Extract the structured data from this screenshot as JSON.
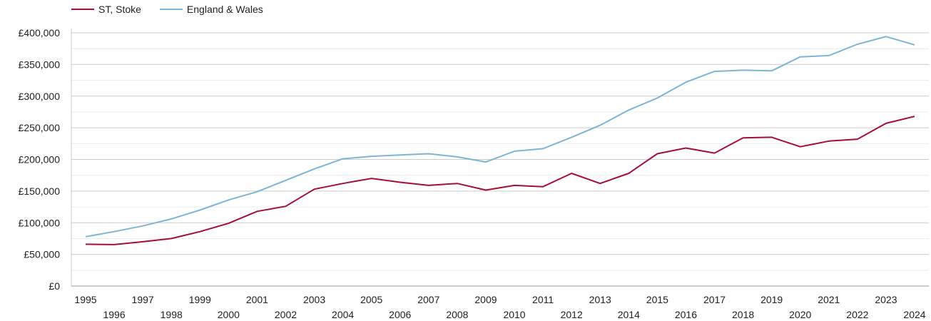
{
  "chart_data": {
    "type": "line",
    "title": "",
    "xlabel": "",
    "ylabel": "",
    "ylim": [
      0,
      400000
    ],
    "grid": true,
    "legend_position": "top-left",
    "y_ticks": [
      {
        "value": 0,
        "label": "£0"
      },
      {
        "value": 50000,
        "label": "£50,000"
      },
      {
        "value": 100000,
        "label": "£100,000"
      },
      {
        "value": 150000,
        "label": "£150,000"
      },
      {
        "value": 200000,
        "label": "£200,000"
      },
      {
        "value": 250000,
        "label": "£250,000"
      },
      {
        "value": 300000,
        "label": "£300,000"
      },
      {
        "value": 350000,
        "label": "£350,000"
      },
      {
        "value": 400000,
        "label": "£400,000"
      }
    ],
    "x": [
      "1995",
      "1996",
      "1997",
      "1998",
      "1999",
      "2000",
      "2001",
      "2002",
      "2003",
      "2004",
      "2005",
      "2006",
      "2007",
      "2008",
      "2009",
      "2010",
      "2011",
      "2012",
      "2013",
      "2014",
      "2015",
      "2016",
      "2017",
      "2018",
      "2019",
      "2020",
      "2021",
      "2022",
      "2023",
      "2024"
    ],
    "series": [
      {
        "name": "ST, Stoke",
        "color": "#a50f35",
        "values": [
          66000,
          65500,
          70000,
          75000,
          86000,
          99000,
          118000,
          126000,
          153000,
          162000,
          170000,
          164000,
          159000,
          162000,
          151500,
          159000,
          157000,
          178000,
          162000,
          178000,
          209000,
          218000,
          210000,
          234000,
          235000,
          220000,
          229000,
          232000,
          257000,
          268000
        ]
      },
      {
        "name": "England & Wales",
        "color": "#7eb4d7",
        "values": [
          78000,
          86000,
          95000,
          106000,
          120000,
          136000,
          149000,
          167000,
          185000,
          201000,
          205000,
          207000,
          209000,
          204000,
          196000,
          213000,
          217000,
          235000,
          254000,
          278000,
          297000,
          322000,
          339000,
          341000,
          340000,
          362000,
          364000,
          382000,
          394000,
          381000
        ]
      }
    ]
  }
}
